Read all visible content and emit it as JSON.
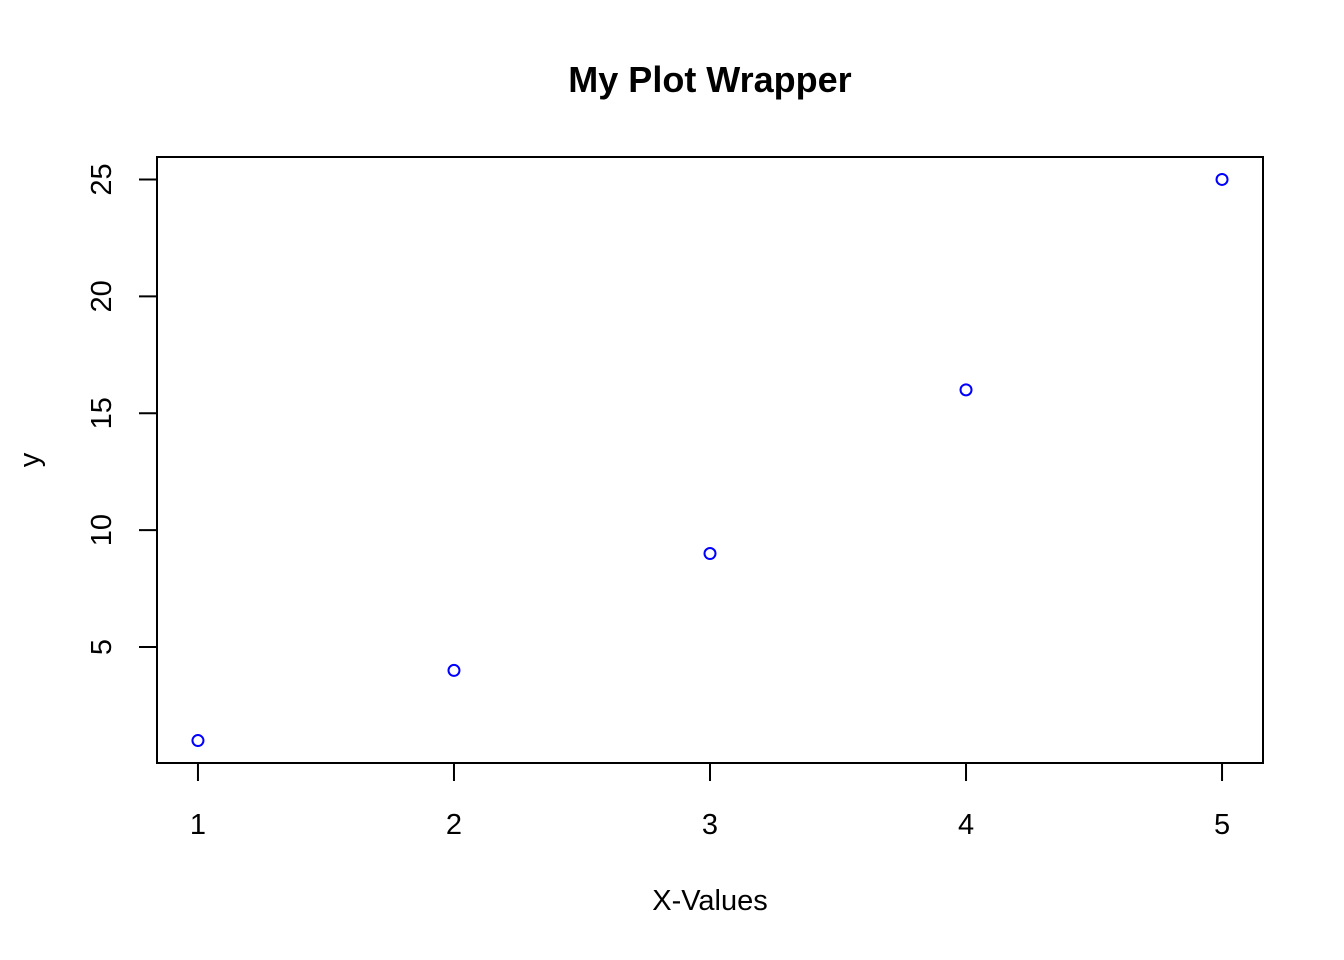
{
  "chart_data": {
    "type": "scatter",
    "title": "My Plot Wrapper",
    "xlabel": "X-Values",
    "ylabel": "y",
    "x": [
      1,
      2,
      3,
      4,
      5
    ],
    "y": [
      1,
      4,
      9,
      16,
      25
    ],
    "xlim": [
      0.84,
      5.16
    ],
    "ylim": [
      0.04,
      25.96
    ],
    "xticks": [
      1,
      2,
      3,
      4,
      5
    ],
    "yticks": [
      5,
      10,
      15,
      20,
      25
    ],
    "grid": false,
    "marker": "open-circle",
    "point_color": "#0000ff"
  }
}
